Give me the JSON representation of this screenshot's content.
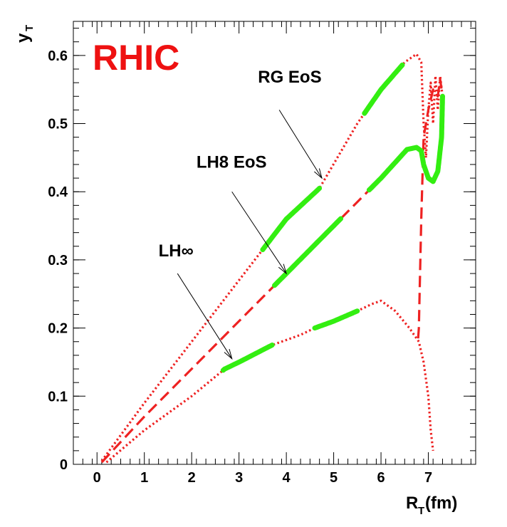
{
  "chart_data": {
    "type": "line",
    "title": "RHIC",
    "title_color": "#ee1111",
    "xlabel": {
      "main": "R",
      "sub": "T",
      "suffix": "(fm)"
    },
    "ylabel": {
      "main": "y",
      "sub": "T"
    },
    "xlim": [
      -0.5,
      8.0
    ],
    "ylim": [
      0,
      0.65
    ],
    "x_ticks": [
      0,
      1,
      2,
      3,
      4,
      5,
      6,
      7
    ],
    "y_ticks": [
      0,
      0.1,
      0.2,
      0.3,
      0.4,
      0.5,
      0.6
    ],
    "x_tick_labels": [
      "0",
      "1",
      "2",
      "3",
      "4",
      "5",
      "6",
      "7"
    ],
    "y_tick_labels": [
      "0",
      "0.1",
      "0.2",
      "0.3",
      "0.4",
      "0.5",
      "0.6"
    ],
    "grid": false,
    "legend": "none",
    "line_color": "#ee2222",
    "highlight_color": "#33ee11",
    "series": [
      {
        "style": "dotted",
        "points": [
          [
            0.1,
            0.005
          ],
          [
            1.0,
            0.09
          ],
          [
            2.0,
            0.18
          ],
          [
            3.0,
            0.27
          ],
          [
            4.0,
            0.36
          ],
          [
            4.7,
            0.405
          ],
          [
            5.5,
            0.5
          ],
          [
            6.0,
            0.55
          ],
          [
            6.5,
            0.59
          ],
          [
            6.75,
            0.602
          ],
          [
            6.85,
            0.59
          ],
          [
            6.9,
            0.5
          ],
          [
            6.95,
            0.45
          ],
          [
            7.0,
            0.52
          ],
          [
            7.05,
            0.56
          ],
          [
            7.1,
            0.5
          ],
          [
            7.15,
            0.57
          ],
          [
            7.2,
            0.52
          ],
          [
            7.25,
            0.57
          ],
          [
            7.3,
            0.54
          ]
        ],
        "highlights": [
          [
            3.5,
            4.7
          ],
          [
            5.65,
            6.45
          ]
        ]
      },
      {
        "style": "dashed",
        "points": [
          [
            0.1,
            0.003
          ],
          [
            1.0,
            0.07
          ],
          [
            2.0,
            0.14
          ],
          [
            3.0,
            0.21
          ],
          [
            4.0,
            0.28
          ],
          [
            5.0,
            0.35
          ],
          [
            6.0,
            0.42
          ],
          [
            6.55,
            0.462
          ],
          [
            6.75,
            0.465
          ],
          [
            6.85,
            0.46
          ],
          [
            6.9,
            0.44
          ],
          [
            7.0,
            0.42
          ],
          [
            7.1,
            0.415
          ],
          [
            7.2,
            0.43
          ],
          [
            7.28,
            0.48
          ],
          [
            7.3,
            0.54
          ],
          [
            7.25,
            0.565
          ],
          [
            7.2,
            0.54
          ],
          [
            7.1,
            0.55
          ],
          [
            7.0,
            0.52
          ],
          [
            6.95,
            0.5
          ],
          [
            6.9,
            0.48
          ],
          [
            6.85,
            0.36
          ],
          [
            6.8,
            0.2
          ],
          [
            6.78,
            0.18
          ]
        ],
        "highlights": [
          [
            3.75,
            5.15
          ],
          [
            5.75,
            7.3
          ]
        ]
      },
      {
        "style": "dotted",
        "points": [
          [
            0.2,
            0.003
          ],
          [
            1.0,
            0.05
          ],
          [
            2.0,
            0.1
          ],
          [
            2.7,
            0.14
          ],
          [
            3.0,
            0.15
          ],
          [
            3.7,
            0.175
          ],
          [
            4.3,
            0.19
          ],
          [
            4.6,
            0.2
          ],
          [
            5.0,
            0.21
          ],
          [
            5.5,
            0.225
          ],
          [
            5.8,
            0.235
          ],
          [
            6.0,
            0.24
          ],
          [
            6.3,
            0.225
          ],
          [
            6.6,
            0.2
          ],
          [
            6.8,
            0.18
          ],
          [
            6.9,
            0.15
          ],
          [
            7.0,
            0.1
          ],
          [
            7.05,
            0.05
          ],
          [
            7.1,
            0.02
          ]
        ],
        "highlights": [
          [
            2.65,
            3.7
          ],
          [
            4.6,
            5.5
          ]
        ]
      }
    ],
    "annotations": [
      {
        "text": "RG EoS",
        "pos": [
          3.4,
          0.56
        ],
        "arrow_from": [
          3.85,
          0.52
        ],
        "arrow_to": [
          4.75,
          0.42
        ]
      },
      {
        "text": "LH8 EoS",
        "pos": [
          2.1,
          0.435
        ],
        "arrow_from": [
          2.85,
          0.4
        ],
        "arrow_to": [
          4.0,
          0.28
        ]
      },
      {
        "text": "LH∞",
        "pos": [
          1.3,
          0.305
        ],
        "arrow_from": [
          1.7,
          0.28
        ],
        "arrow_to": [
          2.85,
          0.155
        ]
      }
    ]
  }
}
